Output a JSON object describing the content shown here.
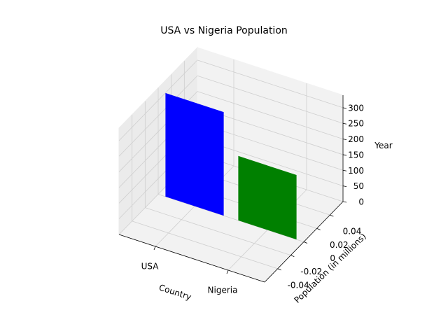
{
  "chart_data": {
    "type": "bar3d",
    "title": "USA vs Nigeria Population",
    "x_label": "Country",
    "y_label": "Population (in millions)",
    "z_label": "Year",
    "categories": [
      "USA",
      "Nigeria"
    ],
    "values": [
      331,
      206
    ],
    "colors": [
      "#0000ff",
      "#008000"
    ],
    "ylim": [
      -0.06,
      0.06
    ],
    "yticks": [
      -0.04,
      -0.02,
      0.0,
      0.02,
      0.04
    ],
    "zlim": [
      0,
      340
    ],
    "zticks": [
      0,
      50,
      100,
      150,
      200,
      250,
      300
    ],
    "grid": true
  }
}
